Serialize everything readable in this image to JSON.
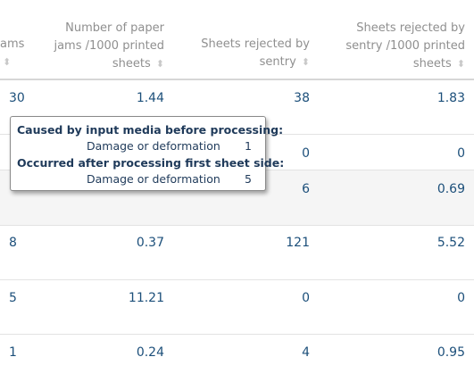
{
  "table": {
    "headers": [
      {
        "line1": "ams",
        "line2": ""
      },
      {
        "line1": "Number of paper",
        "line2": "jams /1000 printed",
        "line3": "sheets"
      },
      {
        "line1": "Sheets rejected by",
        "line2": "sentry"
      },
      {
        "line1": "Sheets rejected by",
        "line2": "sentry /1000 printed",
        "line3": "sheets"
      }
    ],
    "sort_icon": "sort-updown-icon",
    "rows": [
      [
        "30",
        "1.44",
        "38",
        "1.83"
      ],
      [
        "",
        "",
        "0",
        "0"
      ],
      [
        "",
        "",
        "6",
        "0.69"
      ],
      [
        "8",
        "0.37",
        "121",
        "5.52"
      ],
      [
        "5",
        "11.21",
        "0",
        "0"
      ],
      [
        "1",
        "0.24",
        "4",
        "0.95"
      ]
    ]
  },
  "tooltip": {
    "heading1": "Caused by input media before processing:",
    "item1_label": "Damage or deformation",
    "item1_value": "1",
    "heading2": "Occurred after processing first sheet side:",
    "item2_label": "Damage or deformation",
    "item2_value": "5"
  },
  "colors": {
    "value_text": "#1c4f7a",
    "header_text": "#8f8f8f",
    "tooltip_text": "#1f3a5a"
  }
}
